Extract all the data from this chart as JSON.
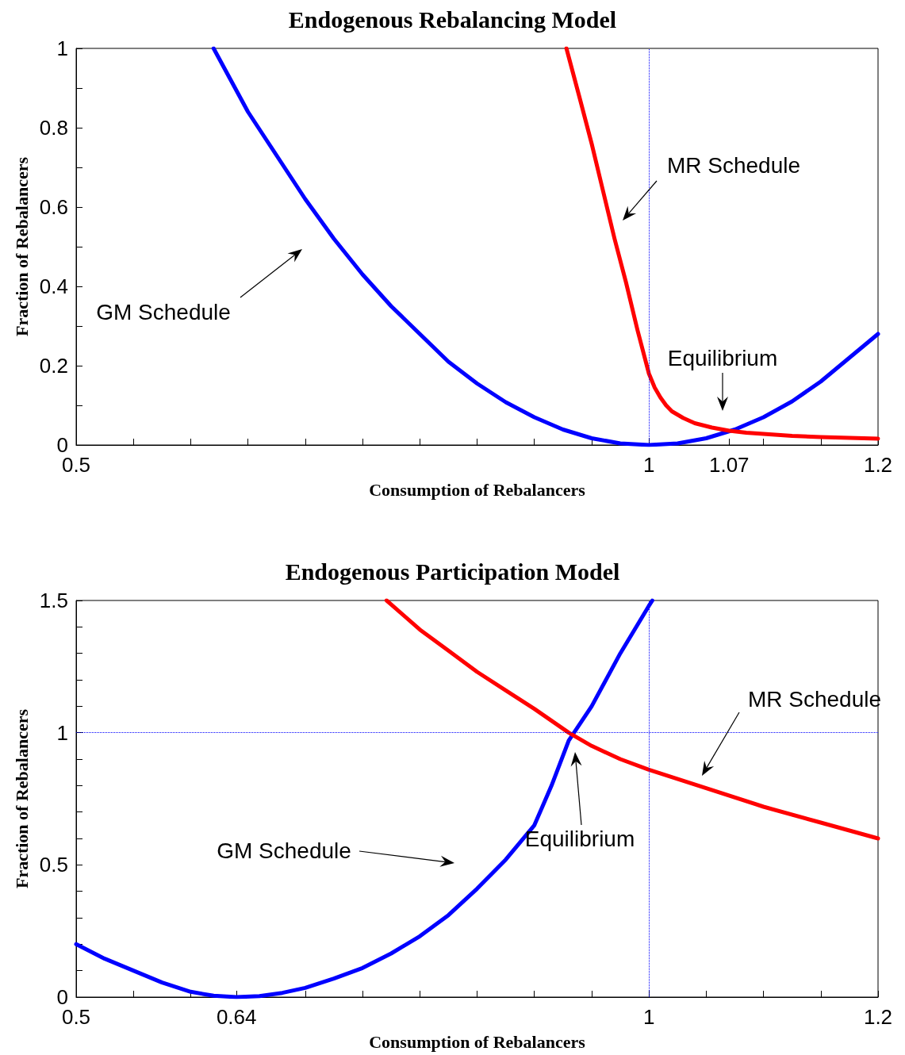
{
  "chart_data": [
    {
      "type": "line",
      "title": "Endogenous Rebalancing Model",
      "xlabel": "Consumption of Rebalancers",
      "ylabel": "Fraction of Rebalancers",
      "xlim": [
        0.5,
        1.2
      ],
      "ylim": [
        0,
        1
      ],
      "xticks": [
        0.5,
        {
          "value": 0.55,
          "label": null
        },
        {
          "value": 0.6,
          "label": null
        },
        {
          "value": 0.65,
          "label": null
        },
        {
          "value": 0.7,
          "label": null
        },
        {
          "value": 0.75,
          "label": null
        },
        {
          "value": 0.8,
          "label": null
        },
        {
          "value": 0.85,
          "label": null
        },
        {
          "value": 0.9,
          "label": null
        },
        {
          "value": 0.95,
          "label": null
        },
        1,
        1.07,
        {
          "value": 1.1,
          "label": null
        },
        {
          "value": 1.15,
          "label": null
        },
        1.2
      ],
      "yticks": [
        0,
        {
          "value": 0.1,
          "label": null
        },
        0.2,
        {
          "value": 0.3,
          "label": null
        },
        0.4,
        {
          "value": 0.5,
          "label": null
        },
        0.6,
        {
          "value": 0.7,
          "label": null
        },
        0.8,
        {
          "value": 0.9,
          "label": null
        },
        1
      ],
      "grid": false,
      "marker": "none",
      "line_style": "solid",
      "series": [
        {
          "color": "#0000ff",
          "x": [
            0.62,
            0.635,
            0.65,
            0.675,
            0.7,
            0.725,
            0.75,
            0.775,
            0.8,
            0.825,
            0.85,
            0.875,
            0.9,
            0.925,
            0.95,
            0.975,
            1.0,
            1.025,
            1.05,
            1.075,
            1.1,
            1.125,
            1.15,
            1.175,
            1.2
          ],
          "values": [
            1.0,
            0.92,
            0.84,
            0.73,
            0.62,
            0.52,
            0.43,
            0.35,
            0.28,
            0.21,
            0.155,
            0.108,
            0.07,
            0.039,
            0.017,
            0.004,
            0,
            0.004,
            0.017,
            0.039,
            0.07,
            0.11,
            0.16,
            0.22,
            0.28
          ]
        },
        {
          "color": "#ff0000",
          "x": [
            0.928,
            0.94,
            0.95,
            0.96,
            0.97,
            0.98,
            0.99,
            1.0,
            1.005,
            1.01,
            1.015,
            1.02,
            1.03,
            1.04,
            1.055,
            1.07,
            1.085,
            1.1,
            1.125,
            1.15,
            1.175,
            1.2
          ],
          "values": [
            1.0,
            0.87,
            0.76,
            0.64,
            0.52,
            0.41,
            0.29,
            0.18,
            0.145,
            0.12,
            0.1,
            0.085,
            0.068,
            0.055,
            0.044,
            0.036,
            0.031,
            0.028,
            0.023,
            0.02,
            0.018,
            0.016
          ]
        }
      ],
      "ref_lines": [
        {
          "axis": "x",
          "value": 1,
          "color": "#0000ff",
          "line_style": "dotted"
        }
      ],
      "annotations": [
        "MR Schedule",
        "GM Schedule",
        "Equilibrium"
      ]
    },
    {
      "type": "line",
      "title": "Endogenous Participation Model",
      "xlabel": "Consumption of Rebalancers",
      "ylabel": "Fraction of Rebalancers",
      "xlim": [
        0.5,
        1.2
      ],
      "ylim": [
        0,
        1.5
      ],
      "xticks": [
        0.5,
        {
          "value": 0.55,
          "label": null
        },
        {
          "value": 0.6,
          "label": null
        },
        0.64,
        {
          "value": 0.7,
          "label": null
        },
        {
          "value": 0.75,
          "label": null
        },
        {
          "value": 0.8,
          "label": null
        },
        {
          "value": 0.85,
          "label": null
        },
        {
          "value": 0.9,
          "label": null
        },
        {
          "value": 0.95,
          "label": null
        },
        1,
        {
          "value": 1.05,
          "label": null
        },
        {
          "value": 1.1,
          "label": null
        },
        {
          "value": 1.15,
          "label": null
        },
        1.2
      ],
      "yticks": [
        0,
        {
          "value": 0.1,
          "label": null
        },
        {
          "value": 0.2,
          "label": null
        },
        {
          "value": 0.3,
          "label": null
        },
        {
          "value": 0.4,
          "label": null
        },
        0.5,
        {
          "value": 0.6,
          "label": null
        },
        {
          "value": 0.7,
          "label": null
        },
        {
          "value": 0.8,
          "label": null
        },
        {
          "value": 0.9,
          "label": null
        },
        1,
        {
          "value": 1.1,
          "label": null
        },
        {
          "value": 1.2,
          "label": null
        },
        {
          "value": 1.3,
          "label": null
        },
        {
          "value": 1.4,
          "label": null
        },
        1.5
      ],
      "grid": false,
      "marker": "none",
      "line_style": "solid",
      "series": [
        {
          "color": "#0000ff",
          "x": [
            0.5,
            0.525,
            0.55,
            0.575,
            0.6,
            0.62,
            0.64,
            0.66,
            0.68,
            0.7,
            0.725,
            0.75,
            0.775,
            0.8,
            0.825,
            0.85,
            0.875,
            0.9,
            0.915,
            0.93,
            0.95,
            0.975,
            1.0,
            1.003
          ],
          "values": [
            0.2,
            0.145,
            0.1,
            0.055,
            0.02,
            0.005,
            0,
            0.004,
            0.016,
            0.035,
            0.07,
            0.11,
            0.165,
            0.23,
            0.31,
            0.41,
            0.52,
            0.65,
            0.8,
            0.97,
            1.1,
            1.3,
            1.48,
            1.5
          ]
        },
        {
          "color": "#ff0000",
          "x": [
            0.771,
            0.8,
            0.825,
            0.85,
            0.875,
            0.9,
            0.93,
            0.95,
            0.975,
            1.0,
            1.05,
            1.1,
            1.15,
            1.2
          ],
          "values": [
            1.5,
            1.39,
            1.31,
            1.23,
            1.16,
            1.09,
            1.0,
            0.95,
            0.9,
            0.86,
            0.79,
            0.72,
            0.66,
            0.6
          ]
        }
      ],
      "ref_lines": [
        {
          "axis": "x",
          "value": 1,
          "color": "#0000ff",
          "line_style": "dotted"
        },
        {
          "axis": "y",
          "value": 1,
          "color": "#0000ff",
          "line_style": "dotted"
        }
      ],
      "annotations": [
        "MR Schedule",
        "GM Schedule",
        "Equilibrium"
      ]
    }
  ]
}
